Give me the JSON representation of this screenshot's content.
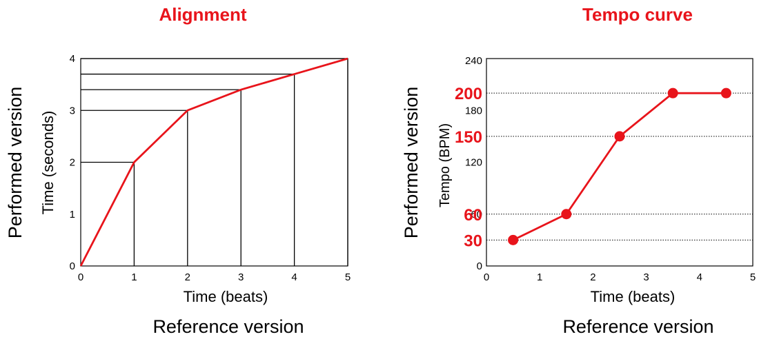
{
  "chart_data": [
    {
      "type": "line",
      "title": "Alignment",
      "xlabel": "Time (beats)",
      "ylabel": "Time (seconds)",
      "outer_xlabel": "Reference version",
      "outer_ylabel": "Performed version",
      "xlim": [
        0,
        5
      ],
      "ylim": [
        0,
        4
      ],
      "xticks": [
        "0",
        "1",
        "2",
        "3",
        "4",
        "5"
      ],
      "yticks": [
        "0",
        "1",
        "2",
        "3",
        "4"
      ],
      "series": [
        {
          "x": [
            0,
            1,
            2,
            3,
            4,
            5
          ],
          "y": [
            0,
            2,
            3,
            3.4,
            3.7,
            4
          ],
          "color": "#e8141b"
        }
      ],
      "guide_lines": true
    },
    {
      "type": "line",
      "title": "Tempo curve",
      "xlabel": "Time (beats)",
      "ylabel": "Tempo (BPM)",
      "outer_xlabel": "Reference version",
      "outer_ylabel": "Performed version",
      "xlim": [
        0,
        5
      ],
      "ylim": [
        0,
        240
      ],
      "xticks": [
        "0",
        "1",
        "2",
        "3",
        "4",
        "5"
      ],
      "yticks": [
        {
          "value": 0,
          "label": "0"
        },
        {
          "value": 60,
          "label": "60"
        },
        {
          "value": 120,
          "label": "120"
        },
        {
          "value": 180,
          "label": "180"
        },
        {
          "value": 240,
          "label": "240"
        }
      ],
      "highlight_ticks": [
        {
          "value": 30,
          "label": "30"
        },
        {
          "value": 60,
          "label": "60"
        },
        {
          "value": 150,
          "label": "150"
        },
        {
          "value": 200,
          "label": "200"
        }
      ],
      "series": [
        {
          "x": [
            0.5,
            1.5,
            2.5,
            3.5,
            4.5
          ],
          "y": [
            30,
            60,
            150,
            200,
            200
          ],
          "color": "#e8141b",
          "markers": true
        }
      ],
      "grid": "dotted-horizontal-at-highlights"
    }
  ]
}
